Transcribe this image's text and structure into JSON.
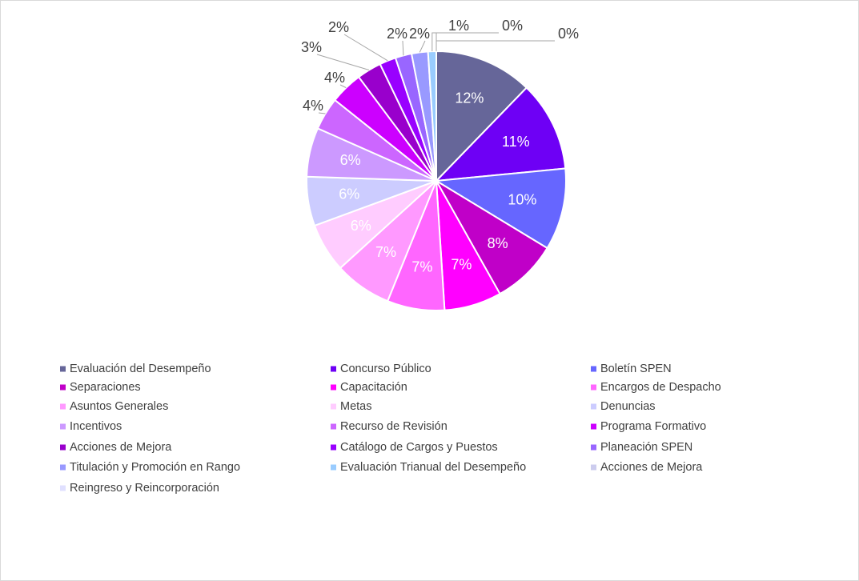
{
  "chart_data": {
    "type": "pie",
    "categories": [
      "Evaluación del Desempeño",
      "Concurso Público",
      "Boletín SPEN",
      "Separaciones",
      "Capacitación",
      "Encargos de Despacho",
      "Asuntos Generales",
      "Metas",
      "Denuncias",
      "Incentivos",
      "Recurso de Revisión",
      "Programa Formativo",
      "Acciones de Mejora",
      "Catálogo de Cargos y Puestos",
      "Planeación SPEN",
      "Titulación y Promoción en Rango",
      "Evaluación Trianual del Desempeño",
      "Acciones de Mejora",
      "Reingreso y Reincorporación"
    ],
    "values": [
      12,
      11,
      10,
      8,
      7,
      7,
      7,
      6,
      6,
      6,
      4,
      4,
      3,
      2,
      2,
      2,
      1,
      0,
      0
    ],
    "value_labels": [
      "12%",
      "11%",
      "10%",
      "8%",
      "7%",
      "7%",
      "7%",
      "6%",
      "6%",
      "6%",
      "4%",
      "4%",
      "3%",
      "2%",
      "2%",
      "2%",
      "1%",
      "0%",
      "0%"
    ],
    "colors": [
      "#666699",
      "#6e00f5",
      "#6666ff",
      "#c000c8",
      "#ff00ff",
      "#ff66ff",
      "#ff99ff",
      "#ffccff",
      "#ccccff",
      "#cc99ff",
      "#cc66ff",
      "#cc00ff",
      "#9900cc",
      "#9900ff",
      "#9966ff",
      "#9999ff",
      "#99ccff",
      "#ccccee",
      "#e0e0ff"
    ],
    "legend": "bottom"
  }
}
